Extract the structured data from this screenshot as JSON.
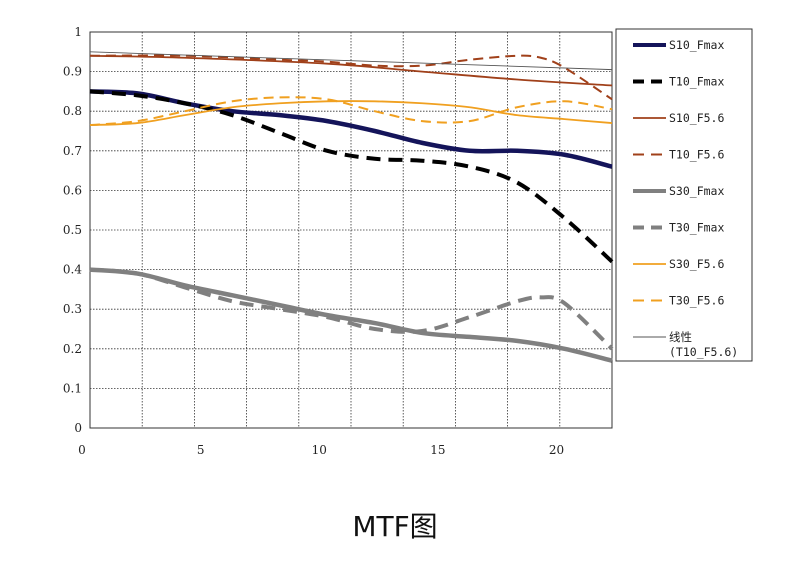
{
  "chart_data": {
    "type": "line",
    "title": "MTF图",
    "xlabel": "",
    "ylabel": "",
    "xlim": [
      0,
      22
    ],
    "ylim": [
      0,
      1
    ],
    "x_ticks": [
      "0",
      "5",
      "10",
      "15",
      "20"
    ],
    "y_ticks": [
      "0",
      "0.1",
      "0.2",
      "0.3",
      "0.4",
      "0.5",
      "0.6",
      "0.7",
      "0.8",
      "0.9",
      "1"
    ],
    "grid": true,
    "legend_position": "right",
    "series": [
      {
        "name": "S10_Fmax",
        "color": "#14145a",
        "style": "solid-thick",
        "x": [
          0,
          2,
          4,
          6,
          8,
          10,
          12,
          14,
          16,
          18,
          20,
          22
        ],
        "y": [
          0.85,
          0.845,
          0.82,
          0.8,
          0.79,
          0.775,
          0.75,
          0.72,
          0.7,
          0.7,
          0.69,
          0.66
        ]
      },
      {
        "name": "T10_Fmax",
        "color": "#000000",
        "style": "dashed-thick",
        "x": [
          0,
          2,
          4,
          6,
          8,
          10,
          12,
          14,
          16,
          18,
          20,
          22
        ],
        "y": [
          0.85,
          0.84,
          0.82,
          0.79,
          0.745,
          0.7,
          0.68,
          0.675,
          0.66,
          0.62,
          0.53,
          0.42
        ]
      },
      {
        "name": "S10_F5.6",
        "color": "#a0401a",
        "style": "solid",
        "x": [
          0,
          4,
          10,
          14,
          18,
          22
        ],
        "y": [
          0.94,
          0.935,
          0.92,
          0.9,
          0.88,
          0.865
        ]
      },
      {
        "name": "T10_F5.6",
        "color": "#a0401a",
        "style": "dashed",
        "x": [
          0,
          4,
          8,
          10,
          12,
          14,
          16,
          18,
          19,
          20,
          22
        ],
        "y": [
          0.94,
          0.94,
          0.93,
          0.925,
          0.915,
          0.915,
          0.93,
          0.94,
          0.935,
          0.91,
          0.83
        ]
      },
      {
        "name": "S30_Fmax",
        "color": "#808080",
        "style": "solid-thick",
        "x": [
          0,
          2,
          4,
          6,
          8,
          10,
          12,
          14,
          16,
          18,
          20,
          22
        ],
        "y": [
          0.4,
          0.39,
          0.36,
          0.335,
          0.31,
          0.285,
          0.265,
          0.24,
          0.23,
          0.22,
          0.2,
          0.17
        ]
      },
      {
        "name": "T30_Fmax",
        "color": "#808080",
        "style": "dashed-thick",
        "x": [
          0,
          2,
          4,
          6,
          8,
          10,
          12,
          14,
          16,
          18,
          19,
          20,
          22
        ],
        "y": [
          0.4,
          0.39,
          0.355,
          0.32,
          0.3,
          0.28,
          0.25,
          0.245,
          0.28,
          0.32,
          0.33,
          0.315,
          0.2
        ]
      },
      {
        "name": "S30_F5.6",
        "color": "#f0a020",
        "style": "solid",
        "x": [
          0,
          2,
          4,
          6,
          8,
          10,
          12,
          14,
          16,
          18,
          20,
          22
        ],
        "y": [
          0.765,
          0.77,
          0.79,
          0.81,
          0.82,
          0.825,
          0.825,
          0.82,
          0.81,
          0.79,
          0.78,
          0.77
        ]
      },
      {
        "name": "T30_F5.6",
        "color": "#f0a020",
        "style": "dashed",
        "x": [
          0,
          2,
          4,
          6,
          8,
          10,
          12,
          14,
          16,
          18,
          20,
          22
        ],
        "y": [
          0.765,
          0.775,
          0.8,
          0.825,
          0.835,
          0.83,
          0.8,
          0.775,
          0.775,
          0.81,
          0.825,
          0.805
        ]
      },
      {
        "name": "线性\n(T10_F5.6)",
        "color": "#555555",
        "style": "thin",
        "x": [
          0,
          22
        ],
        "y": [
          0.95,
          0.905
        ]
      }
    ]
  }
}
